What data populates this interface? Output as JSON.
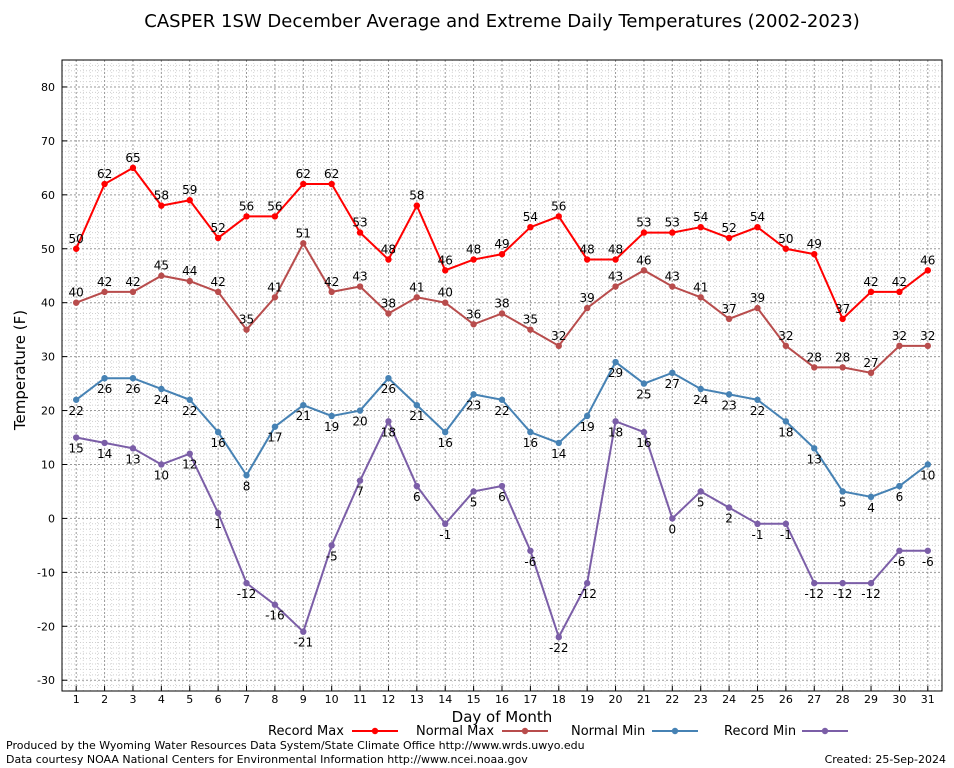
{
  "chart_data": {
    "type": "line",
    "title": "CASPER 1SW December Average and Extreme Daily Temperatures (2002-2023)",
    "xlabel": "Day of Month",
    "ylabel": "Temperature (F)",
    "x": [
      1,
      2,
      3,
      4,
      5,
      6,
      7,
      8,
      9,
      10,
      11,
      12,
      13,
      14,
      15,
      16,
      17,
      18,
      19,
      20,
      21,
      22,
      23,
      24,
      25,
      26,
      27,
      28,
      29,
      30,
      31
    ],
    "xlim": [
      0.5,
      31.5
    ],
    "ylim": [
      -32,
      85
    ],
    "yticks": [
      -30,
      -20,
      -10,
      0,
      10,
      20,
      30,
      40,
      50,
      60,
      70,
      80
    ],
    "grid": true,
    "legend_position": "bottom",
    "series": [
      {
        "name": "Record Max",
        "color": "#ff0000",
        "values": [
          50,
          62,
          65,
          58,
          59,
          52,
          56,
          56,
          62,
          62,
          53,
          48,
          58,
          46,
          48,
          49,
          54,
          56,
          48,
          48,
          53,
          53,
          54,
          52,
          54,
          50,
          49,
          37,
          42,
          42,
          46
        ]
      },
      {
        "name": "Normal Max",
        "color": "#b84c4c",
        "values": [
          40,
          42,
          42,
          45,
          44,
          42,
          35,
          41,
          51,
          42,
          43,
          38,
          41,
          40,
          36,
          38,
          35,
          32,
          39,
          43,
          46,
          43,
          41,
          37,
          39,
          32,
          28,
          28,
          27,
          32,
          32
        ]
      },
      {
        "name": "Normal Min",
        "color": "#4682b4",
        "values": [
          22,
          26,
          26,
          24,
          22,
          16,
          8,
          17,
          21,
          19,
          20,
          26,
          21,
          16,
          23,
          22,
          16,
          14,
          19,
          29,
          25,
          27,
          24,
          23,
          22,
          18,
          13,
          5,
          4,
          6,
          10
        ]
      },
      {
        "name": "Record Min",
        "color": "#7b5ea7",
        "values": [
          15,
          14,
          13,
          10,
          12,
          1,
          -12,
          -16,
          -21,
          -5,
          7,
          18,
          6,
          -1,
          5,
          6,
          -6,
          -22,
          -12,
          18,
          16,
          0,
          5,
          2,
          -1,
          -1,
          -12,
          -12,
          -12,
          -6,
          -6
        ]
      }
    ]
  },
  "footer": {
    "produced_by": "Produced by the Wyoming Water Resources Data System/State Climate Office http://www.wrds.uwyo.edu",
    "courtesy": "Data courtesy NOAA National Centers for Environmental Information http://www.ncei.noaa.gov",
    "created": "Created:  25-Sep-2024"
  }
}
